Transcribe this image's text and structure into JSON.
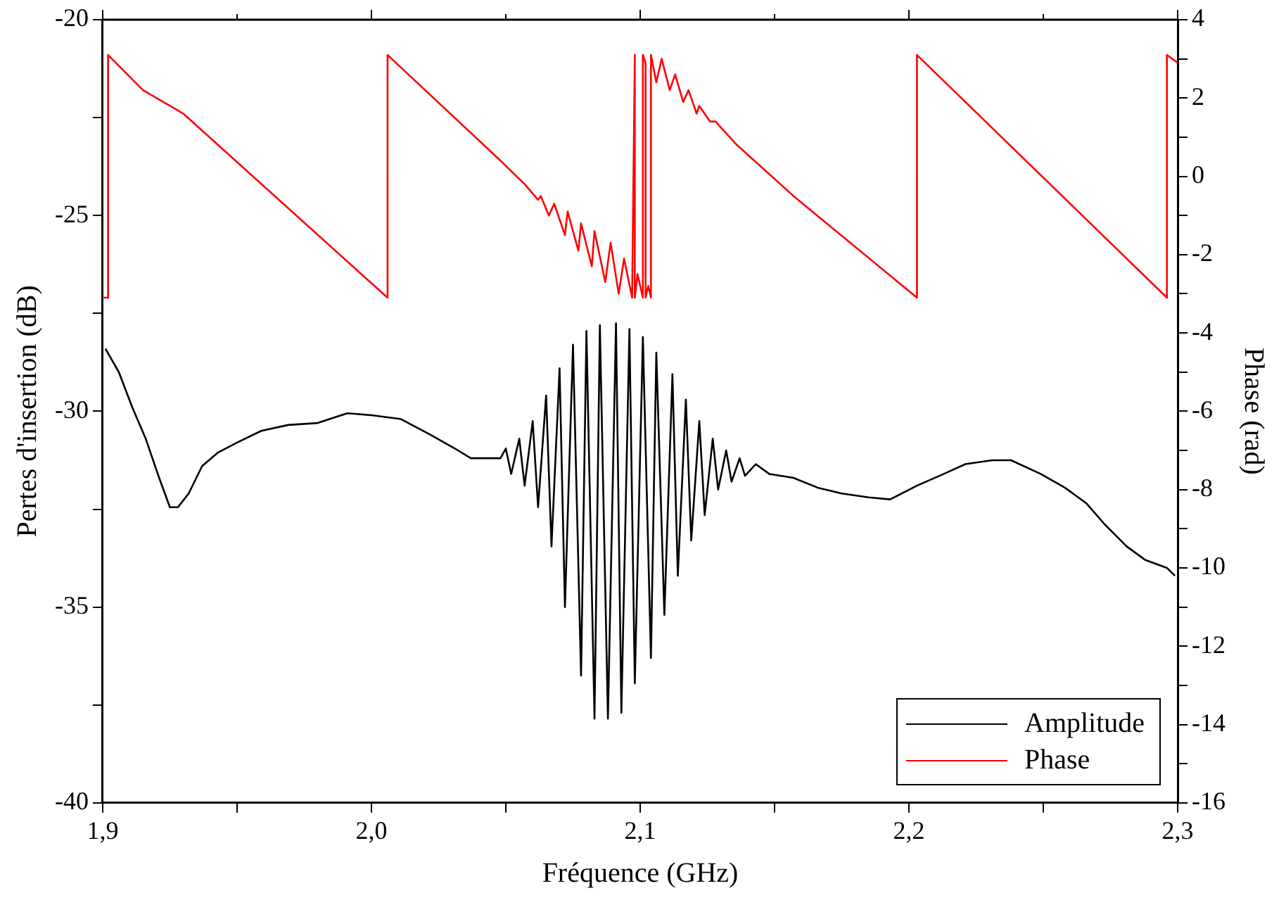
{
  "chart_data": {
    "type": "line",
    "xlabel": "Fréquence (GHz)",
    "ylabel": "Pertes d'insertion (dB)",
    "y2label": "Phase (rad)",
    "xlim": [
      1.9,
      2.3
    ],
    "xticks": [
      {
        "value": 1.9,
        "label": "1,9"
      },
      {
        "value": 1.95,
        "label": null
      },
      {
        "value": 2.0,
        "label": "2,0"
      },
      {
        "value": 2.05,
        "label": null
      },
      {
        "value": 2.1,
        "label": "2,1"
      },
      {
        "value": 2.15,
        "label": null
      },
      {
        "value": 2.2,
        "label": "2,2"
      },
      {
        "value": 2.25,
        "label": null
      },
      {
        "value": 2.3,
        "label": "2,3"
      }
    ],
    "ylim": [
      -40,
      -20
    ],
    "yticks": [
      -40,
      {
        "value": -37.5,
        "label": null
      },
      -35,
      {
        "value": -32.5,
        "label": null
      },
      -30,
      {
        "value": -27.5,
        "label": null
      },
      -25,
      {
        "value": -22.5,
        "label": null
      },
      -20
    ],
    "y2lim": [
      -16,
      4
    ],
    "y2ticks": [
      -16,
      {
        "value": -15,
        "label": null
      },
      -14,
      {
        "value": -13,
        "label": null
      },
      -12,
      {
        "value": -11,
        "label": null
      },
      -10,
      {
        "value": -9,
        "label": null
      },
      -8,
      {
        "value": -7,
        "label": null
      },
      -6,
      {
        "value": -5,
        "label": null
      },
      -4,
      {
        "value": -3,
        "label": null
      },
      -2,
      {
        "value": -1,
        "label": null
      },
      0,
      {
        "value": 1,
        "label": null
      },
      2,
      {
        "value": 3,
        "label": null
      },
      4
    ],
    "legend": "bottom right",
    "series": [
      {
        "name": "Amplitude",
        "color": "#000000",
        "x": [
          1.901,
          1.906,
          1.911,
          1.916,
          1.921,
          1.925,
          1.928,
          1.932,
          1.937,
          1.943,
          1.95,
          1.959,
          1.969,
          1.98,
          1.991,
          2.0,
          2.011,
          2.022,
          2.031,
          2.037,
          2.044,
          2.048,
          2.05,
          2.052,
          2.055,
          2.057,
          2.06,
          2.062,
          2.065,
          2.067,
          2.07,
          2.072,
          2.075,
          2.078,
          2.08,
          2.083,
          2.085,
          2.088,
          2.091,
          2.093,
          2.096,
          2.098,
          2.101,
          2.104,
          2.106,
          2.109,
          2.112,
          2.114,
          2.117,
          2.119,
          2.122,
          2.124,
          2.127,
          2.129,
          2.132,
          2.134,
          2.137,
          2.139,
          2.143,
          2.148,
          2.157,
          2.166,
          2.175,
          2.185,
          2.193,
          2.203,
          2.213,
          2.221,
          2.231,
          2.238,
          2.249,
          2.258,
          2.266,
          2.273,
          2.281,
          2.288,
          2.296,
          2.299
        ],
        "values": [
          -28.4,
          -29.0,
          -29.9,
          -30.7,
          -31.7,
          -32.45,
          -32.45,
          -32.1,
          -31.4,
          -31.05,
          -30.8,
          -30.5,
          -30.35,
          -30.3,
          -30.05,
          -30.1,
          -30.2,
          -30.6,
          -30.95,
          -31.2,
          -31.2,
          -31.2,
          -30.95,
          -31.6,
          -30.7,
          -31.9,
          -30.25,
          -32.45,
          -29.6,
          -33.45,
          -28.9,
          -35.0,
          -28.3,
          -36.75,
          -27.95,
          -37.85,
          -27.8,
          -37.85,
          -27.75,
          -37.7,
          -27.9,
          -36.95,
          -28.1,
          -36.3,
          -28.5,
          -35.2,
          -29.05,
          -34.2,
          -29.7,
          -33.3,
          -30.25,
          -32.65,
          -30.7,
          -32.0,
          -31.0,
          -31.8,
          -31.2,
          -31.65,
          -31.35,
          -31.6,
          -31.7,
          -31.95,
          -32.1,
          -32.2,
          -32.25,
          -31.9,
          -31.6,
          -31.35,
          -31.25,
          -31.25,
          -31.6,
          -31.95,
          -32.35,
          -32.9,
          -33.45,
          -33.8,
          -34.0,
          -34.2
        ]
      },
      {
        "name": "Phase",
        "color": "#ff0000",
        "axis": "y2",
        "x": [
          1.9,
          1.902,
          1.902,
          1.915,
          1.93,
          2.006,
          2.006,
          2.048,
          2.057,
          2.062,
          2.063,
          2.066,
          2.068,
          2.072,
          2.073,
          2.077,
          2.078,
          2.082,
          2.083,
          2.087,
          2.089,
          2.092,
          2.094,
          2.097,
          2.098,
          2.098,
          2.099,
          2.101,
          2.101,
          2.102,
          2.102,
          2.103,
          2.104,
          2.104,
          2.106,
          2.108,
          2.111,
          2.113,
          2.116,
          2.118,
          2.121,
          2.122,
          2.126,
          2.128,
          2.136,
          2.157,
          2.203,
          2.203,
          2.296,
          2.296,
          2.3
        ],
        "values": [
          -3.1,
          -3.1,
          3.1,
          2.2,
          1.6,
          -3.1,
          3.1,
          0.4,
          -0.2,
          -0.6,
          -0.5,
          -1.0,
          -0.7,
          -1.5,
          -0.9,
          -1.9,
          -1.2,
          -2.3,
          -1.4,
          -2.7,
          -1.7,
          -3.0,
          -2.1,
          -3.1,
          3.1,
          -3.1,
          -2.5,
          -3.1,
          3.1,
          2.9,
          -3.1,
          -2.8,
          -3.1,
          3.1,
          2.4,
          3.0,
          2.2,
          2.6,
          1.9,
          2.2,
          1.6,
          1.8,
          1.4,
          1.4,
          0.8,
          -0.5,
          -3.1,
          3.1,
          -3.1,
          3.1,
          2.9
        ]
      }
    ]
  }
}
